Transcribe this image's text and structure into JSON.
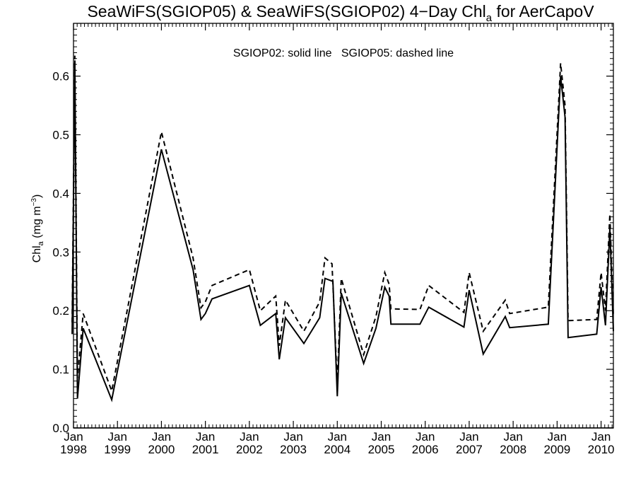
{
  "chart_data": {
    "type": "line",
    "title": {
      "prefix": "SeaWiFS(SGIOP05) & SeaWiFS(SGIOP02) 4−Day Chl",
      "subscript": "a",
      "suffix": " for AerCapoV"
    },
    "subtitle": "SGIOP02: solid line   SGIOP05: dashed line",
    "ylabel": {
      "prefix": "Chl",
      "subscript": "a",
      "unit_open": " (mg m",
      "superscript": "−3",
      "unit_close": ")"
    },
    "xlim": [
      1998.0,
      2010.28
    ],
    "ylim": [
      0.0,
      0.69
    ],
    "yticks": [
      {
        "value": 0.0,
        "label": "0.0"
      },
      {
        "value": 0.1,
        "label": "0.1"
      },
      {
        "value": 0.2,
        "label": "0.2"
      },
      {
        "value": 0.3,
        "label": "0.3"
      },
      {
        "value": 0.4,
        "label": "0.4"
      },
      {
        "value": 0.5,
        "label": "0.5"
      },
      {
        "value": 0.6,
        "label": "0.6"
      }
    ],
    "xticks": [
      {
        "value": 1998,
        "month": "Jan",
        "year": "1998"
      },
      {
        "value": 1999,
        "month": "Jan",
        "year": "1999"
      },
      {
        "value": 2000,
        "month": "Jan",
        "year": "2000"
      },
      {
        "value": 2001,
        "month": "Jan",
        "year": "2001"
      },
      {
        "value": 2002,
        "month": "Jan",
        "year": "2002"
      },
      {
        "value": 2003,
        "month": "Jan",
        "year": "2003"
      },
      {
        "value": 2004,
        "month": "Jan",
        "year": "2004"
      },
      {
        "value": 2005,
        "month": "Jan",
        "year": "2005"
      },
      {
        "value": 2006,
        "month": "Jan",
        "year": "2006"
      },
      {
        "value": 2007,
        "month": "Jan",
        "year": "2007"
      },
      {
        "value": 2008,
        "month": "Jan",
        "year": "2008"
      },
      {
        "value": 2009,
        "month": "Jan",
        "year": "2009"
      },
      {
        "value": 2010,
        "month": "Jan",
        "year": "2010"
      }
    ],
    "minor_x_per_year": 12,
    "minor_y_step": 0.01,
    "reference_line_y": 0.0,
    "series": [
      {
        "name": "SGIOP02",
        "style": "solid",
        "points": [
          [
            1997.97,
            0.16
          ],
          [
            1998.03,
            0.62
          ],
          [
            1998.09,
            0.05
          ],
          [
            1998.22,
            0.17
          ],
          [
            1998.87,
            0.048
          ],
          [
            2000.0,
            0.475
          ],
          [
            2000.72,
            0.27
          ],
          [
            2000.9,
            0.185
          ],
          [
            2001.0,
            0.195
          ],
          [
            2001.15,
            0.22
          ],
          [
            2002.0,
            0.243
          ],
          [
            2002.25,
            0.175
          ],
          [
            2002.6,
            0.195
          ],
          [
            2002.68,
            0.117
          ],
          [
            2002.82,
            0.188
          ],
          [
            2003.24,
            0.144
          ],
          [
            2003.6,
            0.188
          ],
          [
            2003.72,
            0.255
          ],
          [
            2003.9,
            0.25
          ],
          [
            2004.0,
            0.054
          ],
          [
            2004.09,
            0.23
          ],
          [
            2004.6,
            0.11
          ],
          [
            2004.88,
            0.17
          ],
          [
            2005.08,
            0.24
          ],
          [
            2005.18,
            0.225
          ],
          [
            2005.22,
            0.177
          ],
          [
            2005.88,
            0.177
          ],
          [
            2006.08,
            0.206
          ],
          [
            2006.88,
            0.172
          ],
          [
            2007.0,
            0.235
          ],
          [
            2007.32,
            0.126
          ],
          [
            2007.82,
            0.19
          ],
          [
            2007.92,
            0.171
          ],
          [
            2008.8,
            0.177
          ],
          [
            2009.08,
            0.6
          ],
          [
            2009.18,
            0.53
          ],
          [
            2009.25,
            0.154
          ],
          [
            2009.9,
            0.16
          ],
          [
            2010.0,
            0.24
          ],
          [
            2010.1,
            0.175
          ],
          [
            2010.2,
            0.34
          ],
          [
            2010.28,
            0.165
          ]
        ]
      },
      {
        "name": "SGIOP05",
        "style": "dashed",
        "points": [
          [
            1997.97,
            0.18
          ],
          [
            1998.03,
            0.635
          ],
          [
            1998.09,
            0.085
          ],
          [
            1998.22,
            0.195
          ],
          [
            1998.87,
            0.063
          ],
          [
            2000.0,
            0.505
          ],
          [
            2000.72,
            0.29
          ],
          [
            2000.9,
            0.205
          ],
          [
            2001.0,
            0.215
          ],
          [
            2001.15,
            0.243
          ],
          [
            2002.0,
            0.27
          ],
          [
            2002.25,
            0.2
          ],
          [
            2002.6,
            0.225
          ],
          [
            2002.68,
            0.14
          ],
          [
            2002.82,
            0.218
          ],
          [
            2003.24,
            0.165
          ],
          [
            2003.6,
            0.215
          ],
          [
            2003.72,
            0.29
          ],
          [
            2003.88,
            0.28
          ],
          [
            2004.0,
            0.075
          ],
          [
            2004.09,
            0.255
          ],
          [
            2004.6,
            0.125
          ],
          [
            2004.88,
            0.19
          ],
          [
            2005.08,
            0.265
          ],
          [
            2005.18,
            0.245
          ],
          [
            2005.22,
            0.203
          ],
          [
            2005.88,
            0.202
          ],
          [
            2006.08,
            0.243
          ],
          [
            2006.88,
            0.197
          ],
          [
            2007.0,
            0.265
          ],
          [
            2007.32,
            0.165
          ],
          [
            2007.82,
            0.218
          ],
          [
            2007.92,
            0.195
          ],
          [
            2008.8,
            0.206
          ],
          [
            2009.08,
            0.622
          ],
          [
            2009.18,
            0.55
          ],
          [
            2009.25,
            0.183
          ],
          [
            2009.9,
            0.185
          ],
          [
            2010.0,
            0.265
          ],
          [
            2010.1,
            0.2
          ],
          [
            2010.2,
            0.365
          ],
          [
            2010.28,
            0.19
          ]
        ]
      }
    ]
  }
}
